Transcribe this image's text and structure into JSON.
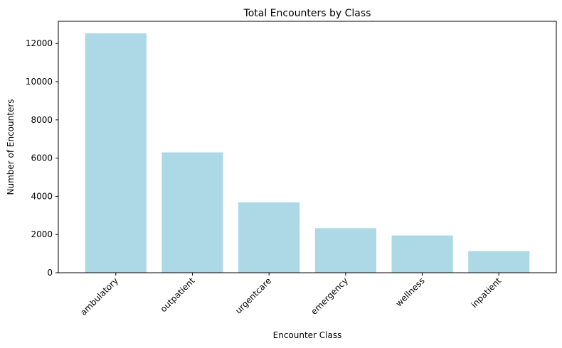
{
  "chart_data": {
    "type": "bar",
    "title": "Total Encounters by Class",
    "xlabel": "Encounter Class",
    "ylabel": "Number of Encounters",
    "categories": [
      "ambulatory",
      "outpatient",
      "urgentcare",
      "emergency",
      "wellness",
      "inpatient"
    ],
    "values": [
      12530,
      6300,
      3680,
      2330,
      1950,
      1130
    ],
    "ylim": [
      0,
      13160
    ],
    "yticks": [
      0,
      2000,
      4000,
      6000,
      8000,
      10000,
      12000
    ],
    "bar_color": "#add8e6",
    "grid": false,
    "legend": "none"
  }
}
